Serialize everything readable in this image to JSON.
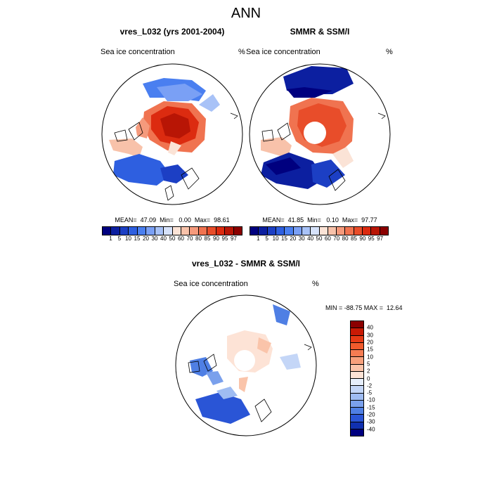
{
  "figure_title": "ANN",
  "panels": {
    "model": {
      "title": "vres_L032 (yrs 2001-2004)",
      "field_label": "Sea ice concentration",
      "units": "%",
      "stats": "MEAN=  47.09  Min=   0.00  Max=  98.61"
    },
    "obs": {
      "title": "SMMR & SSM/I",
      "field_label": "Sea ice concentration",
      "units": "%",
      "stats": "MEAN=  41.85  Min=   0.10  Max=  97.77"
    },
    "diff": {
      "title": "vres_L032 - SMMR & SSM/I",
      "field_label": "Sea ice concentration",
      "units": "%",
      "stats": "MIN = -88.75 MAX =  12.64"
    }
  },
  "colorbar_conc": {
    "labels": [
      "1",
      "5",
      "10",
      "15",
      "20",
      "30",
      "40",
      "50",
      "60",
      "70",
      "80",
      "85",
      "90",
      "95",
      "97"
    ],
    "colors": [
      "#00007f",
      "#0c1fa0",
      "#1c3fc4",
      "#2e5fe0",
      "#4a7ff0",
      "#7aa0f5",
      "#a8c2f7",
      "#d6e2fa",
      "#fbe3d6",
      "#f8c2aa",
      "#f59a7c",
      "#f07350",
      "#e84d2a",
      "#dc2b10",
      "#b81505",
      "#8b0000"
    ]
  },
  "colorbar_diff": {
    "labels": [
      "40",
      "30",
      "20",
      "15",
      "10",
      "5",
      "2",
      "0",
      "-2",
      "-5",
      "-10",
      "-15",
      "-20",
      "-30",
      "-40"
    ],
    "colors": [
      "#8b0000",
      "#c81a05",
      "#e63a15",
      "#f05a2c",
      "#f57c52",
      "#f7a07c",
      "#fac4aa",
      "#fde3d6",
      "#e6eefb",
      "#c4d6f7",
      "#9fbcf2",
      "#7aa0ec",
      "#4f7fe4",
      "#2a55d6",
      "#1030b0",
      "#000080"
    ]
  }
}
